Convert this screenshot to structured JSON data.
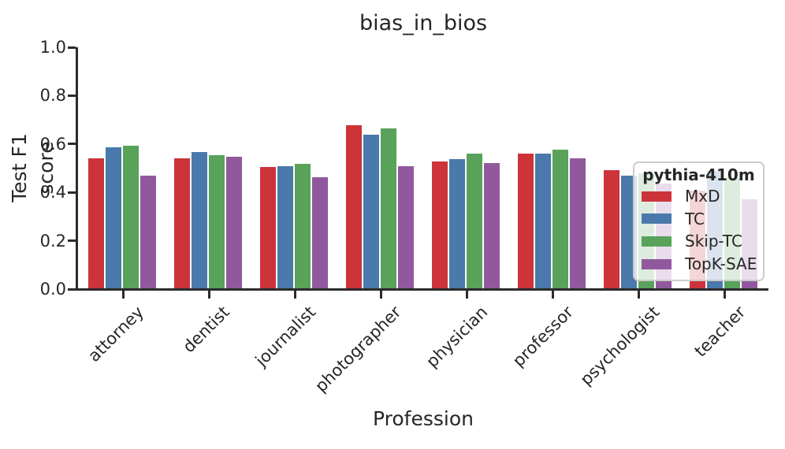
{
  "chart_data": {
    "type": "bar",
    "title": "bias_in_bios",
    "xlabel": "Profession",
    "ylabel": "Test F1 score",
    "ylim": [
      0.0,
      1.0
    ],
    "ytick_labels": [
      "0.0",
      "0.2",
      "0.4",
      "0.6",
      "0.8",
      "1.0"
    ],
    "grid": false,
    "categories": [
      "attorney",
      "dentist",
      "journalist",
      "photographer",
      "physician",
      "professor",
      "psychologist",
      "teacher"
    ],
    "series": [
      {
        "name": "MxD",
        "color": "#cc3439",
        "values": [
          0.542,
          0.54,
          0.505,
          0.676,
          0.527,
          0.56,
          0.493,
          0.408
        ]
      },
      {
        "name": "TC",
        "color": "#4a79ab",
        "values": [
          0.586,
          0.567,
          0.507,
          0.637,
          0.536,
          0.561,
          0.47,
          0.49
        ]
      },
      {
        "name": "Skip-TC",
        "color": "#58a25a",
        "values": [
          0.594,
          0.553,
          0.518,
          0.663,
          0.559,
          0.575,
          0.48,
          0.458
        ]
      },
      {
        "name": "TopK-SAE",
        "color": "#92589e",
        "values": [
          0.468,
          0.547,
          0.463,
          0.509,
          0.52,
          0.542,
          0.435,
          0.372
        ]
      }
    ],
    "legend": {
      "title": "pythia-410m",
      "position": "lower right"
    }
  }
}
